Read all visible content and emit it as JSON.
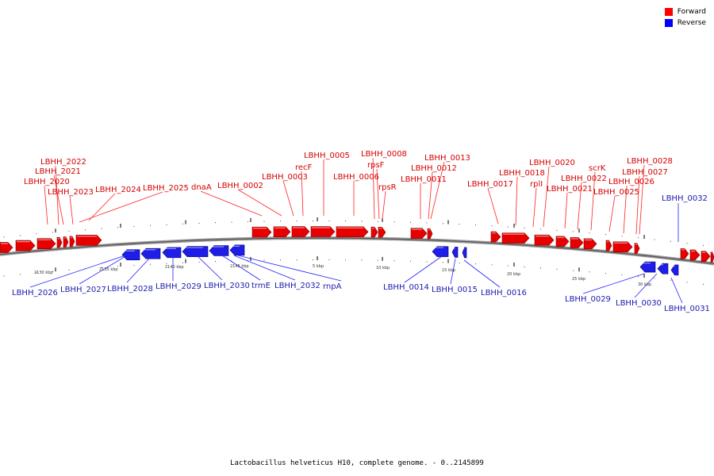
{
  "legend": [
    {
      "label": "Forward",
      "color": "#ff0000"
    },
    {
      "label": "Reverse",
      "color": "#0000ff"
    }
  ],
  "colors": {
    "forward": "#e60000",
    "reverse": "#1e1ee6",
    "forward_label": "#d40000",
    "reverse_label": "#1a1ab0",
    "backbone": "#888888"
  },
  "caption": "Lactobacillus helveticus H10, complete genome. - 0..2145899",
  "scale_labels": [
    "2130 kbp",
    "2135 kbp",
    "2140 kbp",
    "2145 kbp",
    "5 kbp",
    "10 kbp",
    "15 kbp",
    "20 kbp",
    "25 kbp",
    "30 kbp"
  ],
  "forward_labels": [
    "LBHH_2022",
    "LBHH_2021",
    "LBHH_2020",
    "LBHH_2023",
    "LBHH_2024",
    "LBHH_2025",
    "dnaA",
    "LBHH_0002",
    "LBHH_0003",
    "recF",
    "LBHH_0005",
    "LBHH_0006",
    "LBHH_0008",
    "rpsF",
    "rpsR",
    "LBHH_0013",
    "LBHH_0012",
    "LBHH_0011",
    "LBHH_0017",
    "LBHH_0018",
    "LBHH_0020",
    "rplI",
    "LBHH_0021",
    "LBHH_0022",
    "scrK",
    "LBHH_0025",
    "LBHH_0028",
    "LBHH_0027",
    "LBHH_0026"
  ],
  "reverse_labels": [
    "LBHH_2026",
    "LBHH_2027",
    "LBHH_2028",
    "LBHH_2029",
    "LBHH_2030",
    "trmE",
    "LBHH_2032",
    "rnpA",
    "LBHH_0014",
    "LBHH_0015",
    "LBHH_0016",
    "LBHH_0029",
    "LBHH_0030",
    "LBHH_0031",
    "LBHH_0032"
  ]
}
